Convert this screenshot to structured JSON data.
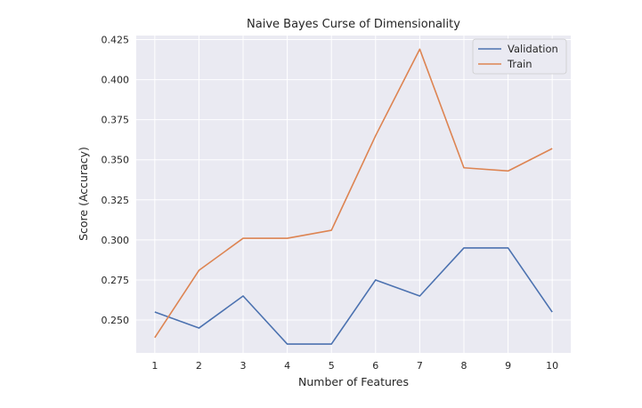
{
  "chart_data": {
    "type": "line",
    "title": "Naive Bayes Curse of Dimensionality",
    "xlabel": "Number of Features",
    "ylabel": "Score (Accuracy)",
    "x": [
      1,
      2,
      3,
      4,
      5,
      6,
      7,
      8,
      9,
      10
    ],
    "xticks": [
      "1",
      "2",
      "3",
      "4",
      "5",
      "6",
      "7",
      "8",
      "9",
      "10"
    ],
    "yticks": [
      "0.250",
      "0.275",
      "0.300",
      "0.325",
      "0.350",
      "0.375",
      "0.400",
      "0.425"
    ],
    "xlim": [
      0.58,
      10.42
    ],
    "ylim": [
      0.2295,
      0.4275
    ],
    "grid": true,
    "legend_position": "top-right",
    "series": [
      {
        "name": "Validation",
        "color": "#4c72b0",
        "values": [
          0.255,
          0.245,
          0.265,
          0.235,
          0.235,
          0.275,
          0.265,
          0.295,
          0.295,
          0.255
        ]
      },
      {
        "name": "Train",
        "color": "#dd8452",
        "values": [
          0.239,
          0.281,
          0.301,
          0.301,
          0.306,
          0.365,
          0.419,
          0.345,
          0.343,
          0.357
        ]
      }
    ]
  }
}
